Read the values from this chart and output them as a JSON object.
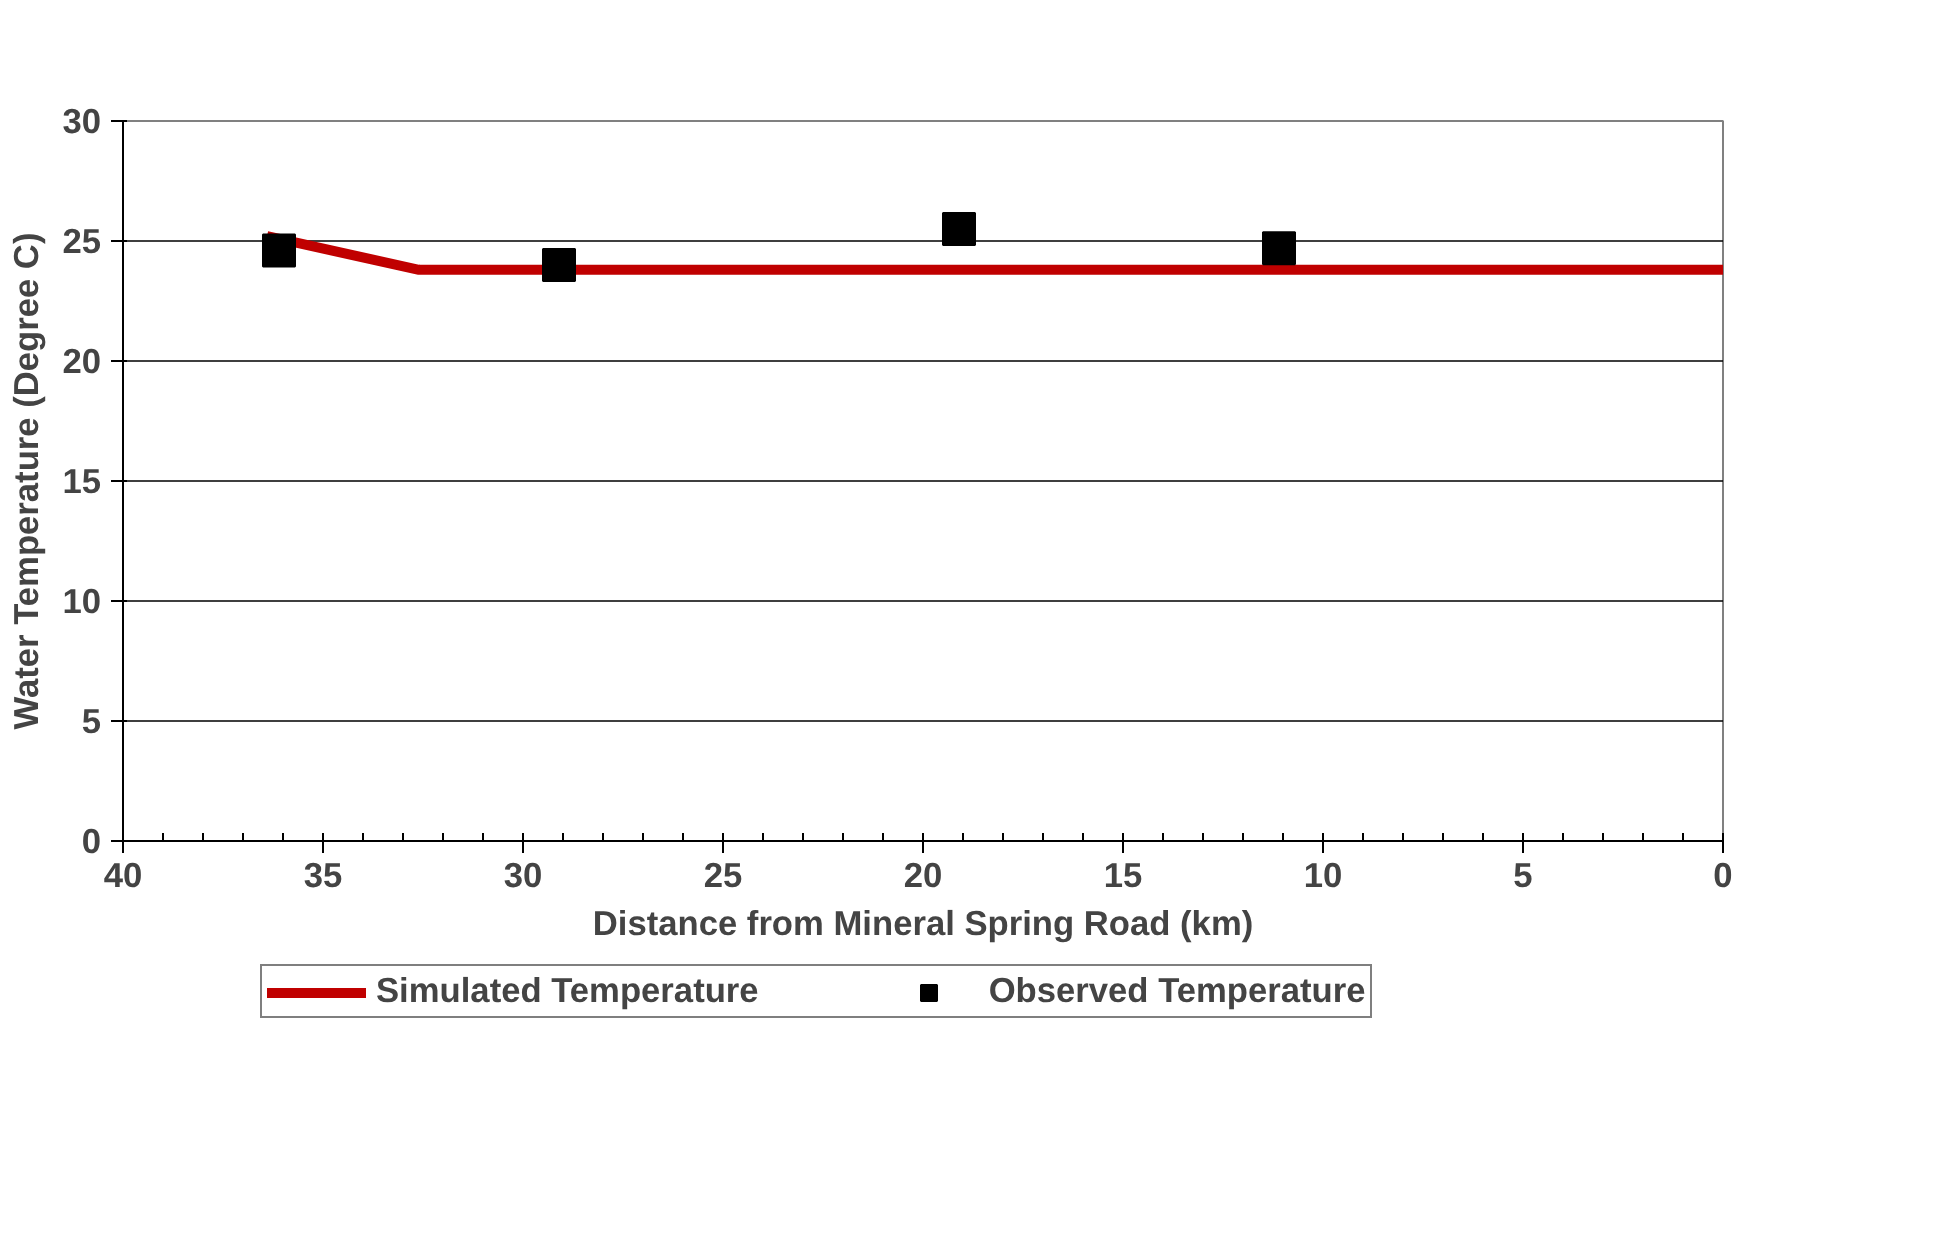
{
  "chart_data": {
    "type": "line",
    "xlabel": "Distance from Mineral Spring Road (km)",
    "ylabel": "Water Temperature (Degree C)",
    "xlim": [
      40,
      0
    ],
    "xticks": [
      40,
      35,
      30,
      25,
      20,
      15,
      10,
      5,
      0
    ],
    "ylim": [
      0,
      30
    ],
    "yticks": [
      0,
      5,
      10,
      15,
      20,
      25,
      30
    ],
    "grid": "y",
    "legend": "bottom",
    "series": [
      {
        "name": "Simulated Temperature",
        "color": "#c00000",
        "marker": "none",
        "line_style": "solid",
        "x": [
          36.4,
          32.6,
          0
        ],
        "values": [
          25.2,
          23.8,
          23.8
        ]
      },
      {
        "name": "Observed Temperature",
        "type": "scatter",
        "color": "#000000",
        "marker": "square",
        "x": [
          36.1,
          29.1,
          19.1,
          11.1
        ],
        "values": [
          24.6,
          24.0,
          25.5,
          24.7
        ]
      }
    ]
  }
}
